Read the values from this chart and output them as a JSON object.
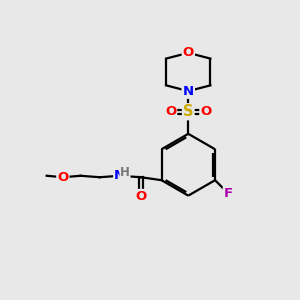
{
  "background_color": "#e8e8e8",
  "bond_color": "#000000",
  "atom_colors": {
    "O": "#ff0000",
    "N": "#0000ff",
    "S": "#ccaa00",
    "F": "#aa00aa",
    "H": "#777777",
    "C": "#000000"
  },
  "font_size": 9.5,
  "figsize": [
    3.0,
    3.0
  ],
  "dpi": 100
}
